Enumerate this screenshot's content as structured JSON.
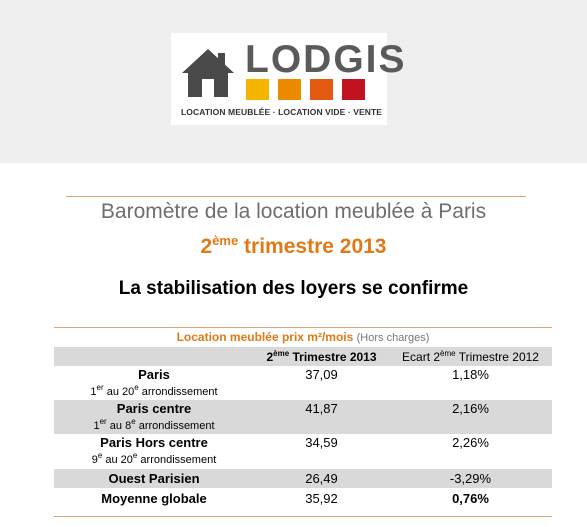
{
  "logo": {
    "word": "LODGIS",
    "tagline": "LOCATION MEUBLÉE · LOCATION VIDE · VENTE",
    "square_colors": [
      "#f5b400",
      "#ec8a00",
      "#e35a10",
      "#c1121f"
    ],
    "house_color": "#4a4a4a"
  },
  "title": {
    "line1": "Baromètre de la location meublée à Paris",
    "line2_sup": "ème",
    "line2_num": "2",
    "line2_rest": " trimestre 2013",
    "line3": "La stabilisation des loyers se confirme"
  },
  "table": {
    "caption_main": "Location meublée prix m²/mois",
    "caption_note": "(Hors charges)",
    "header": {
      "col2_num": "2",
      "col2_sup": "ème",
      "col2_rest": " Trimestre 2013",
      "col3_pre": "Ecart 2",
      "col3_sup": "ème",
      "col3_rest": " Trimestre 2012"
    },
    "rows": [
      {
        "name": "Paris",
        "sub_a": "1",
        "sub_a_sup": "er",
        "sub_b": " au 20",
        "sub_b_sup": "e",
        "sub_c": " arrondissement",
        "value": "37,09",
        "ecart": "1,18%"
      },
      {
        "name": "Paris centre",
        "sub_a": "1",
        "sub_a_sup": "er",
        "sub_b": " au 8",
        "sub_b_sup": "e",
        "sub_c": " arrondissement",
        "value": "41,87",
        "ecart": "2,16%"
      },
      {
        "name": "Paris Hors centre",
        "sub_a": "9",
        "sub_a_sup": "e",
        "sub_b": " au 20",
        "sub_b_sup": "e",
        "sub_c": " arrondissement",
        "value": "34,59",
        "ecart": "2,26%"
      },
      {
        "name": "Ouest Parisien",
        "value": "26,49",
        "ecart": "-3,29%"
      },
      {
        "name": "Moyenne globale",
        "value": "35,92",
        "ecart": "0,76%"
      }
    ]
  },
  "colors": {
    "accent_orange": "#e07a16",
    "row_grey": "#d9d9d9",
    "rule": "#d9a77a"
  }
}
